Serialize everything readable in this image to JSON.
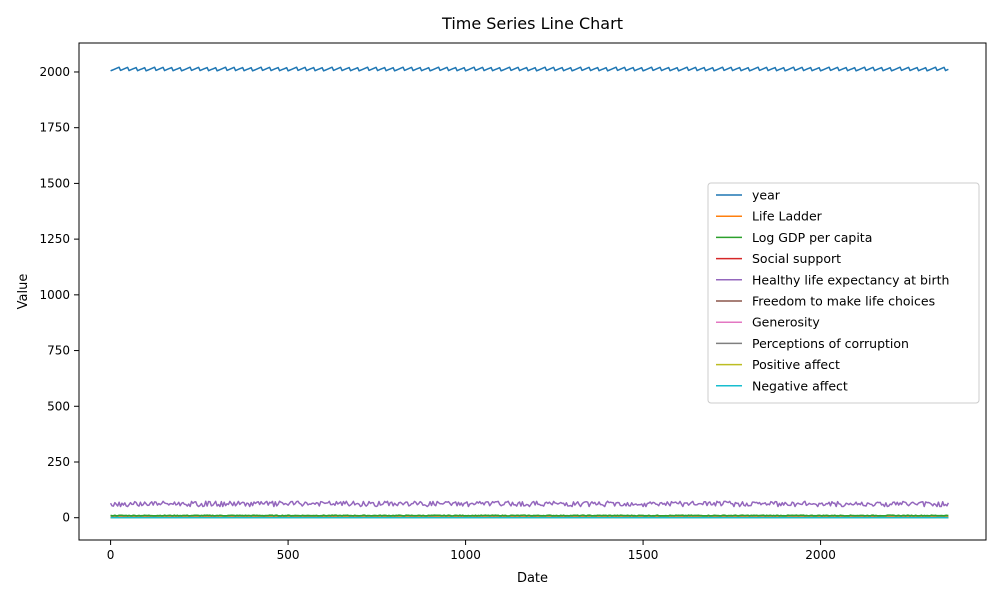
{
  "chart_data": {
    "type": "line",
    "title": "Time Series Line Chart",
    "xlabel": "Date",
    "ylabel": "Value",
    "xlim": [
      -89,
      2466
    ],
    "ylim": [
      -100,
      2130
    ],
    "x_ticks": [
      0,
      500,
      1000,
      1500,
      2000
    ],
    "y_ticks": [
      0,
      250,
      500,
      750,
      1000,
      1250,
      1500,
      1750,
      2000
    ],
    "grid": false,
    "legend_position": "center-right",
    "x_max": 2362,
    "series": [
      {
        "name": "year",
        "color": "#1f77b4",
        "approx_range": [
          2005,
          2022
        ]
      },
      {
        "name": "Life Ladder",
        "color": "#ff7f0e",
        "approx_range": [
          2.4,
          8.0
        ]
      },
      {
        "name": "Log GDP per capita",
        "color": "#2ca02c",
        "approx_range": [
          6.7,
          11.7
        ]
      },
      {
        "name": "Social support",
        "color": "#d62728",
        "approx_range": [
          0.3,
          1.0
        ]
      },
      {
        "name": "Healthy life expectancy at birth",
        "color": "#9467bd",
        "approx_range": [
          40,
          74
        ]
      },
      {
        "name": "Freedom to make life choices",
        "color": "#8c564b",
        "approx_range": [
          0.3,
          1.0
        ]
      },
      {
        "name": "Generosity",
        "color": "#e377c2",
        "approx_range": [
          -0.3,
          0.7
        ]
      },
      {
        "name": "Perceptions of corruption",
        "color": "#7f7f7f",
        "approx_range": [
          0.04,
          0.98
        ]
      },
      {
        "name": "Positive affect",
        "color": "#bcbd22",
        "approx_range": [
          0.3,
          0.88
        ]
      },
      {
        "name": "Negative affect",
        "color": "#17becf",
        "approx_range": [
          0.08,
          0.7
        ]
      }
    ]
  }
}
